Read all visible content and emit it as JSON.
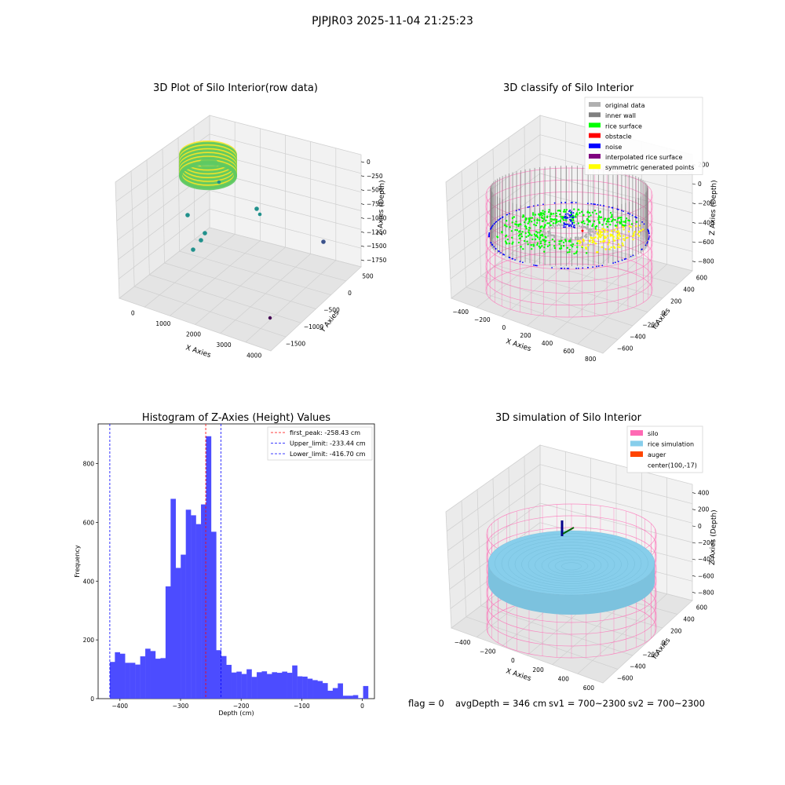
{
  "suptitle": "PJPJR03 2025-11-04 21:25:23",
  "status_line": {
    "flag": "flag = 0",
    "avg_depth": "avgDepth = 346 cm",
    "sv1": "sv1 = 700~2300",
    "sv2": "sv2 = 700~2300"
  },
  "chart_data": [
    {
      "type": "scatter",
      "title": "3D Plot of Silo Interior(row data)",
      "xlabel": "X Axies",
      "ylabel": "Y Axies",
      "zlabel": "Z Axies (Depth)",
      "x_ticks": [
        "0",
        "1000",
        "2000",
        "3000",
        "4000"
      ],
      "y_ticks": [
        "500",
        "0",
        "−500",
        "−1000",
        "−1500"
      ],
      "z_ticks": [
        "0",
        "−250",
        "−500",
        "−750",
        "−1000",
        "−1250",
        "−1500",
        "−1750"
      ],
      "colormap": [
        "#440154",
        "#3b528b",
        "#21918c",
        "#5ec962",
        "#fde725"
      ]
    },
    {
      "type": "scatter",
      "title": "3D classify of Silo Interior",
      "xlabel": "X Axies",
      "ylabel": "Y Axies",
      "zlabel": "Z Axies (Depth)",
      "x_ticks": [
        "−400",
        "−200",
        "0",
        "200",
        "400",
        "600",
        "800"
      ],
      "y_ticks": [
        "600",
        "400",
        "200",
        "0",
        "−200",
        "−400",
        "−600"
      ],
      "z_ticks": [
        "200",
        "0",
        "−200",
        "−400",
        "−600",
        "−800"
      ],
      "legend": [
        {
          "label": "original data",
          "color": "#b0b0b0"
        },
        {
          "label": "inner wall",
          "color": "#808080"
        },
        {
          "label": "rice surface",
          "color": "#00ff00"
        },
        {
          "label": "obstacle",
          "color": "#ff0000"
        },
        {
          "label": "noise",
          "color": "#0000ff"
        },
        {
          "label": "interpolated rice surface",
          "color": "#800080"
        },
        {
          "label": "symmetric generated points",
          "color": "#ffff00"
        }
      ]
    },
    {
      "type": "bar",
      "title": "Histogram of Z-Axies (Height) Values",
      "xlabel": "Depth (cm)",
      "ylabel": "Frequency",
      "xlim": [
        -436,
        20
      ],
      "ylim": [
        0,
        935
      ],
      "x_ticks": [
        -400,
        -300,
        -200,
        -100,
        0
      ],
      "y_ticks": [
        0,
        200,
        400,
        600,
        800
      ],
      "bin_start": -416.7,
      "bin_width": 8.36,
      "values": [
        125,
        158,
        153,
        122,
        122,
        116,
        144,
        170,
        162,
        136,
        138,
        382,
        680,
        445,
        490,
        643,
        624,
        594,
        661,
        893,
        568,
        165,
        145,
        115,
        89,
        92,
        84,
        100,
        74,
        90,
        93,
        84,
        90,
        88,
        92,
        88,
        113,
        76,
        75,
        68,
        63,
        60,
        53,
        27,
        36,
        52,
        10,
        10,
        12,
        2,
        43
      ],
      "bar_color": "#4c4cff",
      "vlines": [
        {
          "label": "first_peak: -258.43 cm",
          "x": -258.43,
          "color": "#ff0000"
        },
        {
          "label": "Upper_limit: -233.44 cm",
          "x": -233.44,
          "color": "#0000ff"
        },
        {
          "label": "Lower_limit: -416.70 cm",
          "x": -416.7,
          "color": "#0000ff"
        }
      ]
    },
    {
      "type": "scatter",
      "title": "3D simulation of Silo Interior",
      "xlabel": "X Axies",
      "ylabel": "Y Axies",
      "zlabel": "Z Axies (Depth)",
      "x_ticks": [
        "−400",
        "−200",
        "0",
        "200",
        "400",
        "600"
      ],
      "y_ticks": [
        "600",
        "400",
        "200",
        "0",
        "−200",
        "−400",
        "−600"
      ],
      "z_ticks": [
        "400",
        "200",
        "0",
        "−200",
        "−400",
        "−600",
        "−800"
      ],
      "legend": [
        {
          "label": "silo",
          "color": "#ff69b4"
        },
        {
          "label": "rice simulation",
          "color": "#87ceeb"
        },
        {
          "label": "auger",
          "color": "#ff4500"
        },
        {
          "label": "center(100,-17)",
          "color": ""
        }
      ]
    }
  ]
}
